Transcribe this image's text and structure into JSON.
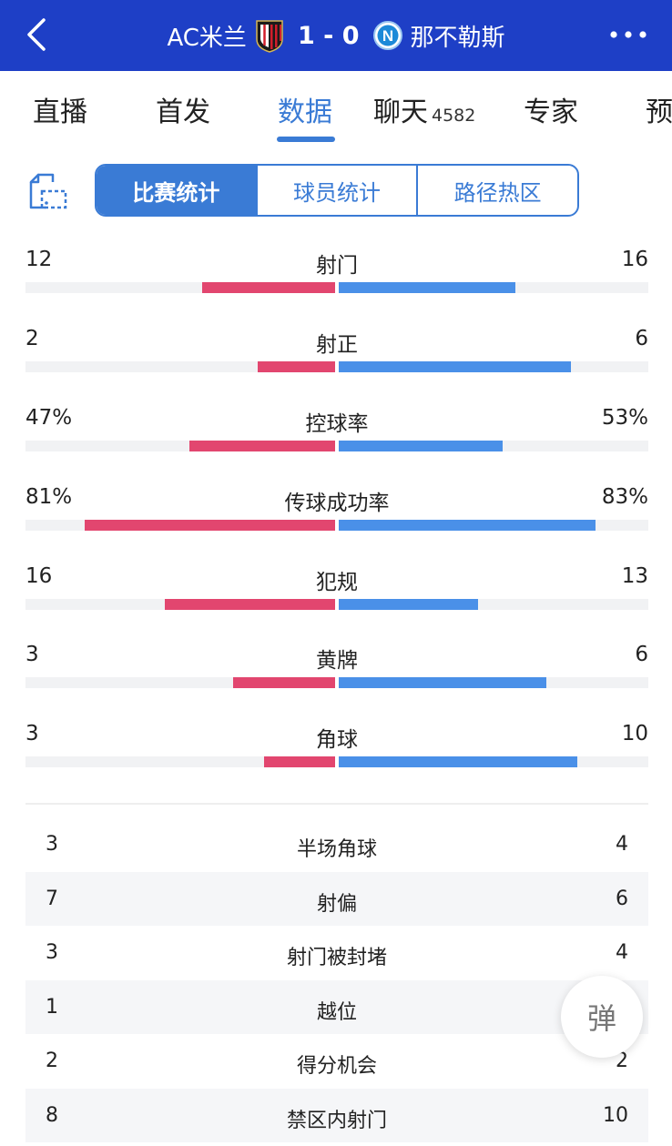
{
  "header": {
    "home_team": "AC米兰",
    "score": "1 - 0",
    "away_team": "那不勒斯",
    "back_icon": "chevron-left-icon",
    "more_icon": "more-horizontal-icon",
    "home_crest": "ac-milan-crest",
    "away_crest": "napoli-crest",
    "away_crest_letter": "N"
  },
  "tabs": [
    {
      "label": "直播",
      "count": ""
    },
    {
      "label": "首发",
      "count": ""
    },
    {
      "label": "数据",
      "count": "",
      "active": true
    },
    {
      "label": "聊天",
      "count": "4582"
    },
    {
      "label": "专家",
      "count": ""
    },
    {
      "label": "预",
      "count": ""
    }
  ],
  "segment": [
    "比赛统计",
    "球员统计",
    "路径热区"
  ],
  "share_icon": "share-icon",
  "colors": {
    "header": "#1e3fc6",
    "accent": "#3a7bd5",
    "home": "#e2466f",
    "away": "#4a90e8"
  },
  "bar_stats": [
    {
      "name": "射门",
      "left": "12",
      "right": "16",
      "left_frac": 0.43,
      "right_frac": 0.57
    },
    {
      "name": "射正",
      "left": "2",
      "right": "6",
      "left_frac": 0.25,
      "right_frac": 0.75
    },
    {
      "name": "控球率",
      "left": "47%",
      "right": "53%",
      "left_frac": 0.47,
      "right_frac": 0.53
    },
    {
      "name": "传球成功率",
      "left": "81%",
      "right": "83%",
      "left_frac": 0.81,
      "right_frac": 0.83
    },
    {
      "name": "犯规",
      "left": "16",
      "right": "13",
      "left_frac": 0.55,
      "right_frac": 0.45
    },
    {
      "name": "黄牌",
      "left": "3",
      "right": "6",
      "left_frac": 0.33,
      "right_frac": 0.67
    },
    {
      "name": "角球",
      "left": "3",
      "right": "10",
      "left_frac": 0.23,
      "right_frac": 0.77
    }
  ],
  "table_stats": [
    {
      "name": "半场角球",
      "left": "3",
      "right": "4"
    },
    {
      "name": "射偏",
      "left": "7",
      "right": "6"
    },
    {
      "name": "射门被封堵",
      "left": "3",
      "right": "4"
    },
    {
      "name": "越位",
      "left": "1",
      "right": ""
    },
    {
      "name": "得分机会",
      "left": "2",
      "right": "2"
    },
    {
      "name": "禁区内射门",
      "left": "8",
      "right": "10"
    }
  ],
  "danmu_button": "弹"
}
